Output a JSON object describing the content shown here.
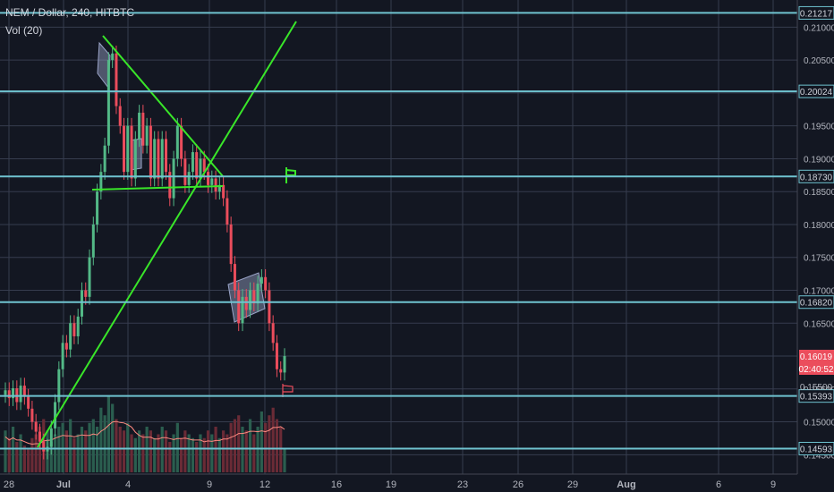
{
  "legend": {
    "symbol_line": "NEM / Dollar, 240, HITBTC",
    "indicator_line": "Vol (20)"
  },
  "colors": {
    "background": "#131722",
    "grid": "#363c4e",
    "up": "#53b987",
    "down": "#eb4d5c",
    "up_volume": "#2b5e4f",
    "down_volume": "#6a2b36",
    "horizontal_level": "#6fc3d0",
    "trendline": "#39e629",
    "volume_ma": "#ff8a80",
    "box_fill": "#9aa4c8",
    "axis_text": "#b2b5be"
  },
  "chart_data": {
    "type": "candlestick",
    "title": "NEM / Dollar, 240, HITBTC",
    "ylim": [
      0.1445,
      0.2125
    ],
    "price_ticks": [
      "0.21000",
      "0.20500",
      "0.20000",
      "0.19500",
      "0.19000",
      "0.18500",
      "0.18000",
      "0.17500",
      "0.17000",
      "0.16500",
      "0.16000",
      "0.15500",
      "0.15000",
      "0.14500"
    ],
    "x_ticks": [
      "28",
      "Jul",
      "4",
      "9",
      "12",
      "16",
      "19",
      "23",
      "26",
      "29",
      "Aug",
      "6",
      "9"
    ],
    "horizontal_levels": [
      {
        "label": "0.21217",
        "price": 0.21217
      },
      {
        "label": "0.20024",
        "price": 0.20024
      },
      {
        "label": "0.18730",
        "price": 0.1873
      },
      {
        "label": "0.16820",
        "price": 0.1682
      },
      {
        "label": "0.15393",
        "price": 0.15393
      },
      {
        "label": "0.14593",
        "price": 0.14593
      }
    ],
    "last_price": {
      "label": "0.16019",
      "price": 0.16019
    },
    "countdown": {
      "label": "02:40:52"
    },
    "partial_tick": {
      "label": "0.15500"
    },
    "candles_open_close": [
      [
        0.1541,
        0.1548
      ],
      [
        0.1548,
        0.1536
      ],
      [
        0.1536,
        0.1551
      ],
      [
        0.1551,
        0.153
      ],
      [
        0.153,
        0.1555
      ],
      [
        0.1555,
        0.1538
      ],
      [
        0.1538,
        0.152
      ],
      [
        0.152,
        0.15
      ],
      [
        0.15,
        0.1485
      ],
      [
        0.1485,
        0.147
      ],
      [
        0.147,
        0.1455
      ],
      [
        0.1455,
        0.1462
      ],
      [
        0.1462,
        0.149
      ],
      [
        0.149,
        0.153
      ],
      [
        0.153,
        0.158
      ],
      [
        0.158,
        0.162
      ],
      [
        0.162,
        0.161
      ],
      [
        0.161,
        0.165
      ],
      [
        0.165,
        0.163
      ],
      [
        0.163,
        0.166
      ],
      [
        0.166,
        0.17
      ],
      [
        0.17,
        0.169
      ],
      [
        0.169,
        0.175
      ],
      [
        0.175,
        0.18
      ],
      [
        0.18,
        0.185
      ],
      [
        0.185,
        0.188
      ],
      [
        0.188,
        0.192
      ],
      [
        0.192,
        0.205
      ],
      [
        0.205,
        0.206
      ],
      [
        0.206,
        0.198
      ],
      [
        0.198,
        0.195
      ],
      [
        0.195,
        0.188
      ],
      [
        0.188,
        0.195
      ],
      [
        0.195,
        0.187
      ],
      [
        0.187,
        0.193
      ],
      [
        0.193,
        0.197
      ],
      [
        0.197,
        0.192
      ],
      [
        0.192,
        0.195
      ],
      [
        0.195,
        0.187
      ],
      [
        0.187,
        0.193
      ],
      [
        0.193,
        0.187
      ],
      [
        0.187,
        0.193
      ],
      [
        0.193,
        0.188
      ],
      [
        0.188,
        0.184
      ],
      [
        0.184,
        0.19
      ],
      [
        0.19,
        0.195
      ],
      [
        0.195,
        0.19
      ],
      [
        0.19,
        0.186
      ],
      [
        0.186,
        0.188
      ],
      [
        0.188,
        0.191
      ],
      [
        0.191,
        0.187
      ],
      [
        0.187,
        0.19
      ],
      [
        0.19,
        0.188
      ],
      [
        0.188,
        0.186
      ],
      [
        0.186,
        0.187
      ],
      [
        0.187,
        0.185
      ],
      [
        0.185,
        0.186
      ],
      [
        0.186,
        0.184
      ],
      [
        0.184,
        0.18
      ],
      [
        0.18,
        0.174
      ],
      [
        0.174,
        0.17
      ],
      [
        0.17,
        0.165
      ],
      [
        0.165,
        0.169
      ],
      [
        0.169,
        0.167
      ],
      [
        0.167,
        0.17
      ],
      [
        0.17,
        0.168
      ],
      [
        0.168,
        0.171
      ],
      [
        0.171,
        0.172
      ],
      [
        0.172,
        0.17
      ],
      [
        0.17,
        0.165
      ],
      [
        0.165,
        0.162
      ],
      [
        0.162,
        0.158
      ],
      [
        0.158,
        0.1575
      ],
      [
        0.1575,
        0.16
      ]
    ],
    "volume_relative": [
      0.55,
      0.45,
      0.6,
      0.4,
      0.5,
      0.35,
      0.3,
      0.45,
      0.5,
      0.6,
      0.7,
      0.55,
      0.4,
      0.5,
      0.6,
      0.65,
      0.55,
      0.7,
      0.45,
      0.5,
      0.6,
      0.55,
      0.65,
      0.7,
      0.6,
      0.85,
      0.75,
      1.0,
      0.9,
      0.7,
      0.6,
      0.55,
      0.65,
      0.5,
      0.45,
      0.55,
      0.5,
      0.6,
      0.55,
      0.45,
      0.5,
      0.6,
      0.55,
      0.4,
      0.5,
      0.65,
      0.45,
      0.55,
      0.5,
      0.45,
      0.4,
      0.5,
      0.45,
      0.55,
      0.5,
      0.6,
      0.45,
      0.55,
      0.5,
      0.65,
      0.7,
      0.75,
      0.6,
      0.55,
      0.7,
      0.5,
      0.6,
      0.8,
      0.65,
      0.75,
      0.85,
      0.7,
      0.6,
      0.3
    ]
  }
}
